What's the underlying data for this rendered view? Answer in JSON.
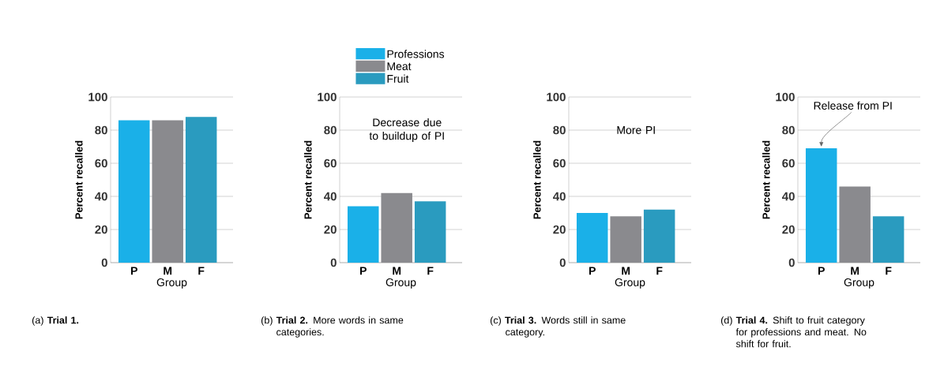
{
  "chart_data": [
    {
      "type": "bar",
      "title": "(a) **Trial 1.**",
      "xlabel": "Group",
      "ylabel": "Percent recalled",
      "categories": [
        "P",
        "M",
        "F"
      ],
      "values": [
        86,
        86,
        88
      ],
      "colors": [
        "#1ab0e8",
        "#8a8a8e",
        "#2a9bbf"
      ],
      "ylim": [
        0,
        100
      ],
      "yticks": [
        0,
        20,
        40,
        60,
        80,
        100
      ],
      "grid": "y"
    },
    {
      "type": "bar",
      "title": "(b) **Trial 2.** More words in same categories.",
      "xlabel": "Group",
      "ylabel": "Percent recalled",
      "categories": [
        "P",
        "M",
        "F"
      ],
      "series": [
        {
          "name": "Professions",
          "color": "#1ab0e8",
          "values": [
            34,
            null,
            null
          ]
        },
        {
          "name": "Meat",
          "color": "#8a8a8e",
          "values": [
            null,
            42,
            null
          ]
        },
        {
          "name": "Fruit",
          "color": "#2a9bbf",
          "values": [
            null,
            null,
            37
          ]
        }
      ],
      "ylim": [
        0,
        100
      ],
      "yticks": [
        0,
        20,
        40,
        60,
        80,
        100
      ],
      "grid": "y",
      "legend": "top",
      "annotations": [
        "Decrease due to buildup of PI"
      ]
    },
    {
      "type": "bar",
      "title": "(c) **Trial 3.** Words still in same category.",
      "xlabel": "Group",
      "ylabel": "Percent recalled",
      "categories": [
        "P",
        "M",
        "F"
      ],
      "values": [
        30,
        28,
        32
      ],
      "colors": [
        "#1ab0e8",
        "#8a8a8e",
        "#2a9bbf"
      ],
      "ylim": [
        0,
        100
      ],
      "yticks": [
        0,
        20,
        40,
        60,
        80,
        100
      ],
      "grid": "y",
      "annotations": [
        "More PI"
      ]
    },
    {
      "type": "bar",
      "title": "(d) **Trial 4.** Shift to fruit category for professions and meat. No shift for fruit.",
      "xlabel": "Group",
      "ylabel": "Percent recalled",
      "categories": [
        "P",
        "M",
        "F"
      ],
      "values": [
        69,
        46,
        28
      ],
      "colors": [
        "#1ab0e8",
        "#8a8a8e",
        "#2a9bbf"
      ],
      "ylim": [
        0,
        100
      ],
      "yticks": [
        0,
        20,
        40,
        60,
        80,
        100
      ],
      "grid": "y",
      "annotations": [
        {
          "text": "Release from PI",
          "x": "P",
          "y": 69
        }
      ]
    }
  ]
}
